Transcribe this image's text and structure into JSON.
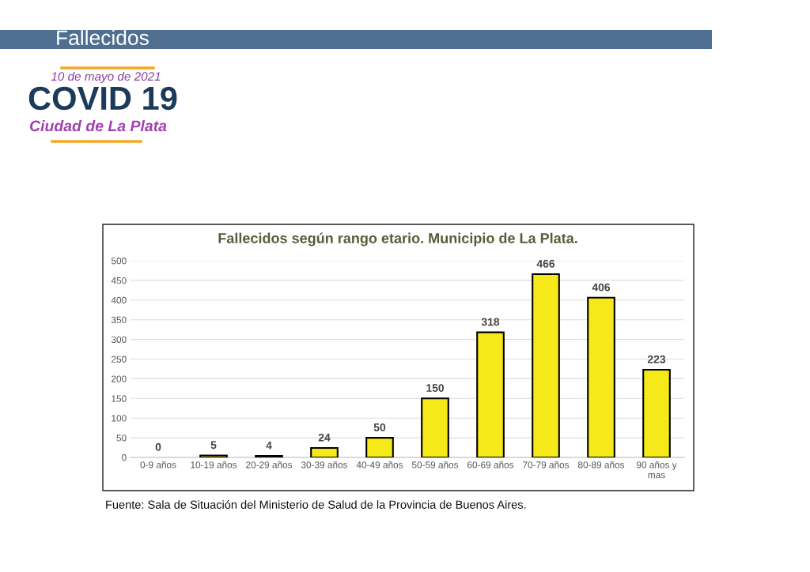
{
  "chart_data": {
    "type": "bar",
    "title": "Fallecidos según rango etario. Municipio de La Plata.",
    "categories": [
      "0-9 años",
      "10-19 años",
      "20-29 años",
      "30-39 años",
      "40-49 años",
      "50-59 años",
      "60-69 años",
      "70-79 años",
      "80-89 años",
      "90 años y\nmas"
    ],
    "values": [
      0,
      5,
      4,
      24,
      50,
      150,
      318,
      466,
      406,
      223
    ],
    "color": "#f5e91a",
    "ylim": [
      0,
      500
    ],
    "yticks": [
      0,
      50,
      100,
      150,
      200,
      250,
      300,
      350,
      400,
      450,
      500
    ],
    "grid": "y",
    "data_labels": true,
    "annotations": [
      "Fallecidos",
      "10 de mayo de 2021",
      "COVID 19",
      "Ciudad de La Plata",
      "Fuente: Sala de Situación del Ministerio de Salud de la Provincia de Buenos Aires."
    ]
  }
}
